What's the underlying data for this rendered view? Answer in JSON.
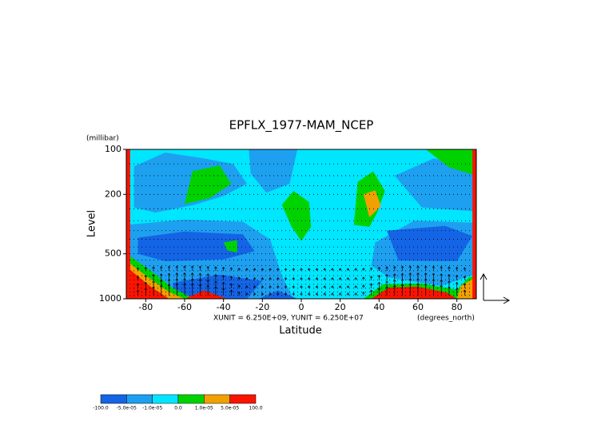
{
  "chart_data": {
    "type": "contour",
    "title": "EPFLX_1977-MAM_NCEP",
    "x_label": "Latitude",
    "y_label": "Level",
    "y_unit_label": "(millibar)",
    "x_unit_label": "(degrees_north)",
    "scale_note": "XUNIT = 6.250E+09, YUNIT = 6.250E+07",
    "xlim": [
      -90,
      90
    ],
    "xticks": [
      -80,
      -60,
      -40,
      -20,
      0,
      20,
      40,
      60,
      80
    ],
    "ylim": [
      1000,
      100
    ],
    "yticks": [
      100,
      200,
      500,
      1000
    ],
    "y_log": true,
    "colorbar": {
      "levels": [
        {
          "value": -100,
          "label": "-100.0"
        },
        {
          "value": -5e-05,
          "label": "-5.0e-05"
        },
        {
          "value": -1e-05,
          "label": "-1.0e-05"
        },
        {
          "value": 0,
          "label": "0.0"
        },
        {
          "value": 1e-05,
          "label": "1.0e-05"
        },
        {
          "value": 5e-05,
          "label": "5.0e-05"
        },
        {
          "value": 100,
          "label": "100.0"
        }
      ],
      "colors": [
        "#1464e6",
        "#1ea0f0",
        "#00e6ff",
        "#00d200",
        "#f0a000",
        "#fa1400"
      ]
    }
  }
}
